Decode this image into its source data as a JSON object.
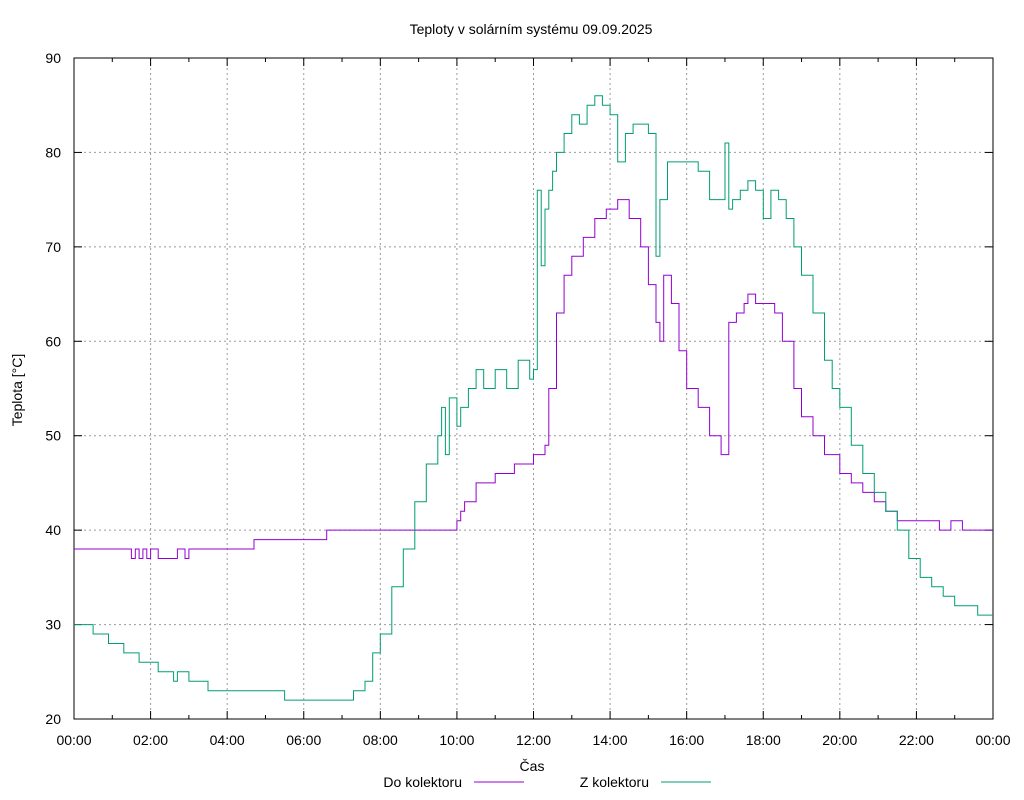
{
  "chart_data": {
    "type": "line",
    "title": "Teploty v solárním systému 09.09.2025",
    "xlabel": "Čas",
    "ylabel": "Teplota [°C]",
    "xlim": [
      0,
      24
    ],
    "ylim": [
      20,
      90
    ],
    "grid": true,
    "legend_position": "bottom",
    "x_ticks": [
      {
        "v": 0,
        "label": "00:00"
      },
      {
        "v": 2,
        "label": "02:00"
      },
      {
        "v": 4,
        "label": "04:00"
      },
      {
        "v": 6,
        "label": "06:00"
      },
      {
        "v": 8,
        "label": "08:00"
      },
      {
        "v": 10,
        "label": "10:00"
      },
      {
        "v": 12,
        "label": "12:00"
      },
      {
        "v": 14,
        "label": "14:00"
      },
      {
        "v": 16,
        "label": "16:00"
      },
      {
        "v": 18,
        "label": "18:00"
      },
      {
        "v": 20,
        "label": "20:00"
      },
      {
        "v": 22,
        "label": "22:00"
      },
      {
        "v": 24,
        "label": "00:00"
      }
    ],
    "y_ticks": [
      {
        "v": 20,
        "label": "20"
      },
      {
        "v": 30,
        "label": "30"
      },
      {
        "v": 40,
        "label": "40"
      },
      {
        "v": 50,
        "label": "50"
      },
      {
        "v": 60,
        "label": "60"
      },
      {
        "v": 70,
        "label": "70"
      },
      {
        "v": 80,
        "label": "80"
      },
      {
        "v": 90,
        "label": "90"
      }
    ],
    "series": [
      {
        "name": "Do kolektoru",
        "color": "#9400d3",
        "x": [
          0,
          1.4,
          1.5,
          1.6,
          1.7,
          1.8,
          1.9,
          2.0,
          2.2,
          2.5,
          2.7,
          2.9,
          3.0,
          3.2,
          3.5,
          4.0,
          4.5,
          4.7,
          5.5,
          6.0,
          6.5,
          6.6,
          7.0,
          8.0,
          9.0,
          9.6,
          9.9,
          10.0,
          10.1,
          10.2,
          10.5,
          10.7,
          11.0,
          11.5,
          11.7,
          12.0,
          12.2,
          12.3,
          12.4,
          12.6,
          12.8,
          13.0,
          13.3,
          13.6,
          13.9,
          14.2,
          14.5,
          14.8,
          15.0,
          15.2,
          15.3,
          15.4,
          15.6,
          15.8,
          16.0,
          16.3,
          16.6,
          16.9,
          17.0,
          17.1,
          17.3,
          17.5,
          17.6,
          17.8,
          18.0,
          18.3,
          18.5,
          18.8,
          19.0,
          19.3,
          19.6,
          20.0,
          20.3,
          20.6,
          20.9,
          21.2,
          21.5,
          21.7,
          22.0,
          22.3,
          22.6,
          22.9,
          23.2,
          23.5,
          24.0
        ],
        "y": [
          38,
          38,
          37,
          38,
          37,
          38,
          37,
          38,
          37,
          37,
          38,
          37,
          38,
          38,
          38,
          38,
          38,
          39,
          39,
          39,
          39,
          40,
          40,
          40,
          40,
          40,
          40,
          41,
          42,
          43,
          45,
          45,
          46,
          47,
          47,
          48,
          48,
          49,
          55,
          63,
          67,
          69,
          71,
          73,
          74,
          75,
          73,
          70,
          66,
          62,
          60,
          67,
          64,
          59,
          55,
          53,
          50,
          48,
          48,
          62,
          63,
          64,
          65,
          64,
          64,
          63,
          60,
          55,
          52,
          50,
          48,
          46,
          45,
          44,
          43,
          42,
          41,
          41,
          41,
          41,
          40,
          41,
          40,
          40,
          40
        ]
      },
      {
        "name": "Z kolektoru",
        "color": "#009e73",
        "x": [
          0,
          0.4,
          0.5,
          0.8,
          0.9,
          1.2,
          1.3,
          1.6,
          1.7,
          2.0,
          2.2,
          2.5,
          2.6,
          2.7,
          3.0,
          3.5,
          4.0,
          4.5,
          5.0,
          5.5,
          6.0,
          6.5,
          7.0,
          7.3,
          7.6,
          7.8,
          8.0,
          8.3,
          8.6,
          8.9,
          9.2,
          9.5,
          9.6,
          9.7,
          9.8,
          10.0,
          10.1,
          10.3,
          10.5,
          10.7,
          11.0,
          11.3,
          11.6,
          11.9,
          12.0,
          12.1,
          12.2,
          12.3,
          12.4,
          12.5,
          12.6,
          12.8,
          13.0,
          13.2,
          13.4,
          13.6,
          13.8,
          14.0,
          14.2,
          14.4,
          14.6,
          14.8,
          15.0,
          15.2,
          15.3,
          15.5,
          15.8,
          16.0,
          16.3,
          16.6,
          16.8,
          17.0,
          17.1,
          17.2,
          17.4,
          17.6,
          17.8,
          18.0,
          18.2,
          18.4,
          18.6,
          18.8,
          19.0,
          19.3,
          19.6,
          19.8,
          20.0,
          20.3,
          20.6,
          20.9,
          21.2,
          21.5,
          21.8,
          22.1,
          22.4,
          22.7,
          23.0,
          23.3,
          23.6,
          23.8,
          24.0
        ],
        "y": [
          30,
          30,
          29,
          29,
          28,
          28,
          27,
          27,
          26,
          26,
          25,
          25,
          24,
          25,
          24,
          23,
          23,
          23,
          23,
          22,
          22,
          22,
          22,
          23,
          24,
          27,
          29,
          34,
          38,
          43,
          47,
          50,
          53,
          48,
          54,
          51,
          53,
          55,
          57,
          55,
          57,
          55,
          58,
          56,
          57,
          76,
          68,
          74,
          76,
          78,
          80,
          82,
          84,
          83,
          85,
          86,
          85,
          84,
          79,
          82,
          83,
          83,
          82,
          69,
          75,
          79,
          79,
          79,
          78,
          75,
          75,
          81,
          74,
          75,
          76,
          77,
          76,
          73,
          76,
          75,
          73,
          70,
          67,
          63,
          58,
          55,
          53,
          49,
          46,
          44,
          42,
          40,
          37,
          35,
          34,
          33,
          32,
          32,
          31,
          31,
          31
        ]
      }
    ]
  }
}
